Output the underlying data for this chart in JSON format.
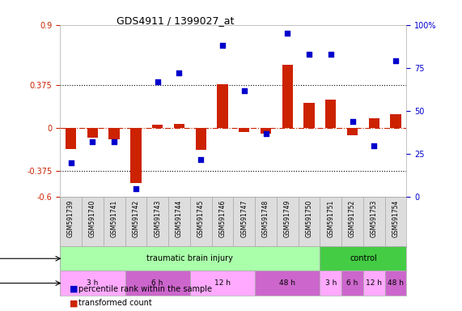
{
  "title": "GDS4911 / 1399027_at",
  "samples": [
    "GSM591739",
    "GSM591740",
    "GSM591741",
    "GSM591742",
    "GSM591743",
    "GSM591744",
    "GSM591745",
    "GSM591746",
    "GSM591747",
    "GSM591748",
    "GSM591749",
    "GSM591750",
    "GSM591751",
    "GSM591752",
    "GSM591753",
    "GSM591754"
  ],
  "transformed_count": [
    -0.18,
    -0.08,
    -0.1,
    -0.48,
    0.03,
    0.04,
    -0.19,
    0.38,
    -0.03,
    -0.05,
    0.55,
    0.22,
    0.25,
    -0.06,
    0.09,
    0.12
  ],
  "percentile_rank": [
    20,
    32,
    32,
    5,
    67,
    72,
    22,
    88,
    62,
    37,
    95,
    83,
    83,
    44,
    30,
    79
  ],
  "ylim_left": [
    -0.6,
    0.9
  ],
  "ylim_right": [
    0,
    100
  ],
  "yticks_left": [
    -0.6,
    -0.375,
    0,
    0.375,
    0.9
  ],
  "yticks_right": [
    0,
    25,
    50,
    75,
    100
  ],
  "ytick_labels_left": [
    "-0.6",
    "-0.375",
    "0",
    "0.375",
    "0.9"
  ],
  "ytick_labels_right": [
    "0",
    "25",
    "50",
    "75",
    "100%"
  ],
  "hlines": [
    0.375,
    -0.375
  ],
  "bar_color": "#cc2200",
  "dot_color": "#0000cc",
  "zero_line_color": "#cc2200",
  "shock_row": [
    {
      "label": "traumatic brain injury",
      "start": 0,
      "end": 12,
      "color": "#aaffaa"
    },
    {
      "label": "control",
      "start": 12,
      "end": 16,
      "color": "#44cc44"
    }
  ],
  "time_row": [
    {
      "label": "3 h",
      "start": 0,
      "end": 3,
      "color": "#ffaaff"
    },
    {
      "label": "6 h",
      "start": 3,
      "end": 6,
      "color": "#cc66cc"
    },
    {
      "label": "12 h",
      "start": 6,
      "end": 9,
      "color": "#ffaaff"
    },
    {
      "label": "48 h",
      "start": 9,
      "end": 12,
      "color": "#cc66cc"
    },
    {
      "label": "3 h",
      "start": 12,
      "end": 13,
      "color": "#ffaaff"
    },
    {
      "label": "6 h",
      "start": 13,
      "end": 14,
      "color": "#cc66cc"
    },
    {
      "label": "12 h",
      "start": 14,
      "end": 15,
      "color": "#ffaaff"
    },
    {
      "label": "48 h",
      "start": 15,
      "end": 16,
      "color": "#cc66cc"
    }
  ],
  "legend": [
    {
      "label": "transformed count",
      "color": "#cc2200",
      "marker": "s"
    },
    {
      "label": "percentile rank within the sample",
      "color": "#0000cc",
      "marker": "s"
    }
  ]
}
